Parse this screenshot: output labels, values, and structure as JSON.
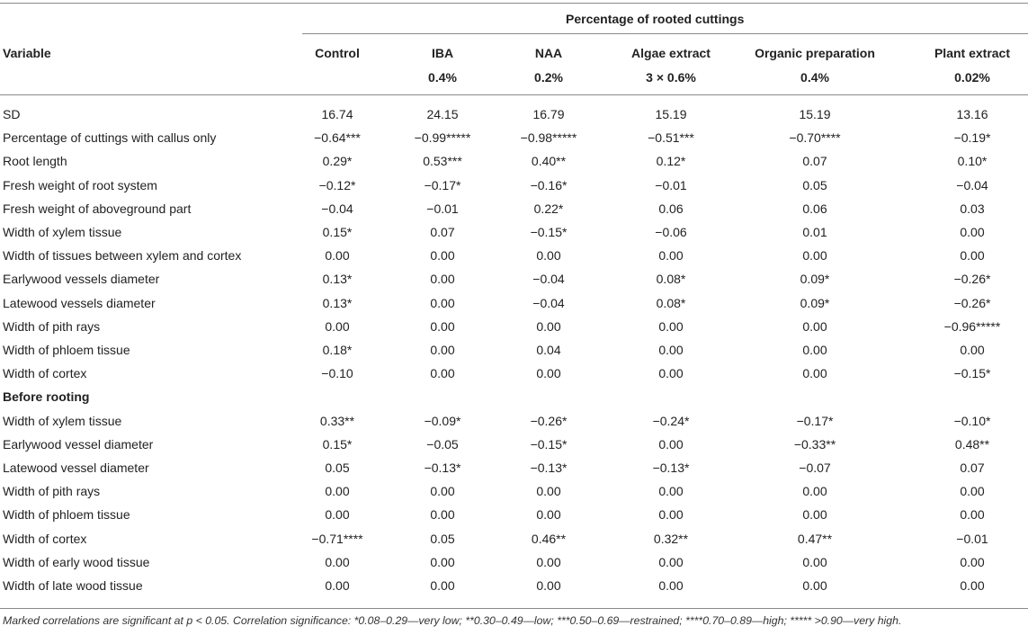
{
  "table": {
    "spanning_header": "Percentage of rooted cuttings",
    "variable_header": "Variable",
    "columns": [
      {
        "name": "Control",
        "dose": ""
      },
      {
        "name": "IBA",
        "dose": "0.4%"
      },
      {
        "name": "NAA",
        "dose": "0.2%"
      },
      {
        "name": "Algae extract",
        "dose": "3 × 0.6%"
      },
      {
        "name": "Organic preparation",
        "dose": "0.4%"
      },
      {
        "name": "Plant extract",
        "dose": "0.02%"
      }
    ],
    "rows": [
      {
        "label": "SD",
        "values": [
          "16.74",
          "24.15",
          "16.79",
          "15.19",
          "15.19",
          "13.16"
        ]
      },
      {
        "label": "Percentage of cuttings with callus only",
        "values": [
          "−0.64***",
          "−0.99*****",
          "−0.98*****",
          "−0.51***",
          "−0.70****",
          "−0.19*"
        ]
      },
      {
        "label": "Root length",
        "values": [
          "0.29*",
          "0.53***",
          "0.40**",
          "0.12*",
          "0.07",
          "0.10*"
        ]
      },
      {
        "label": "Fresh weight of root system",
        "values": [
          "−0.12*",
          "−0.17*",
          "−0.16*",
          "−0.01",
          "0.05",
          "−0.04"
        ]
      },
      {
        "label": "Fresh weight of aboveground part",
        "values": [
          "−0.04",
          "−0.01",
          "0.22*",
          "0.06",
          "0.06",
          "0.03"
        ]
      },
      {
        "label": "Width of xylem tissue",
        "values": [
          "0.15*",
          "0.07",
          "−0.15*",
          "−0.06",
          "0.01",
          "0.00"
        ]
      },
      {
        "label": "Width of tissues between xylem and cortex",
        "values": [
          "0.00",
          "0.00",
          "0.00",
          "0.00",
          "0.00",
          "0.00"
        ]
      },
      {
        "label": "Earlywood vessels diameter",
        "values": [
          "0.13*",
          "0.00",
          "−0.04",
          "0.08*",
          "0.09*",
          "−0.26*"
        ]
      },
      {
        "label": "Latewood vessels diameter",
        "values": [
          "0.13*",
          "0.00",
          "−0.04",
          "0.08*",
          "0.09*",
          "−0.26*"
        ]
      },
      {
        "label": "Width of pith rays",
        "values": [
          "0.00",
          "0.00",
          "0.00",
          "0.00",
          "0.00",
          "−0.96*****"
        ]
      },
      {
        "label": "Width of phloem tissue",
        "values": [
          "0.18*",
          "0.00",
          "0.04",
          "0.00",
          "0.00",
          "0.00"
        ]
      },
      {
        "label": "Width of cortex",
        "values": [
          "−0.10",
          "0.00",
          "0.00",
          "0.00",
          "0.00",
          "−0.15*"
        ]
      }
    ],
    "section_label": "Before rooting",
    "section_rows": [
      {
        "label": "Width of xylem tissue",
        "values": [
          "0.33**",
          "−0.09*",
          "−0.26*",
          "−0.24*",
          "−0.17*",
          "−0.10*"
        ]
      },
      {
        "label": "Earlywood vessel diameter",
        "values": [
          "0.15*",
          "−0.05",
          "−0.15*",
          "0.00",
          "−0.33**",
          "0.48**"
        ]
      },
      {
        "label": "Latewood vessel diameter",
        "values": [
          "0.05",
          "−0.13*",
          "−0.13*",
          "−0.13*",
          "−0.07",
          "0.07"
        ]
      },
      {
        "label": "Width of pith rays",
        "values": [
          "0.00",
          "0.00",
          "0.00",
          "0.00",
          "0.00",
          "0.00"
        ]
      },
      {
        "label": "Width of phloem tissue",
        "values": [
          "0.00",
          "0.00",
          "0.00",
          "0.00",
          "0.00",
          "0.00"
        ]
      },
      {
        "label": "Width of cortex",
        "values": [
          "−0.71****",
          "0.05",
          "0.46**",
          "0.32**",
          "0.47**",
          "−0.01"
        ]
      },
      {
        "label": "Width of early wood tissue",
        "values": [
          "0.00",
          "0.00",
          "0.00",
          "0.00",
          "0.00",
          "0.00"
        ]
      },
      {
        "label": "Width of late wood tissue",
        "values": [
          "0.00",
          "0.00",
          "0.00",
          "0.00",
          "0.00",
          "0.00"
        ]
      }
    ],
    "footnote": "Marked correlations are significant at p < 0.05. Correlation significance: *0.08–0.29—very low; **0.30–0.49—low; ***0.50–0.69—restrained; ****0.70–0.89—high; ***** >0.90—very high."
  }
}
